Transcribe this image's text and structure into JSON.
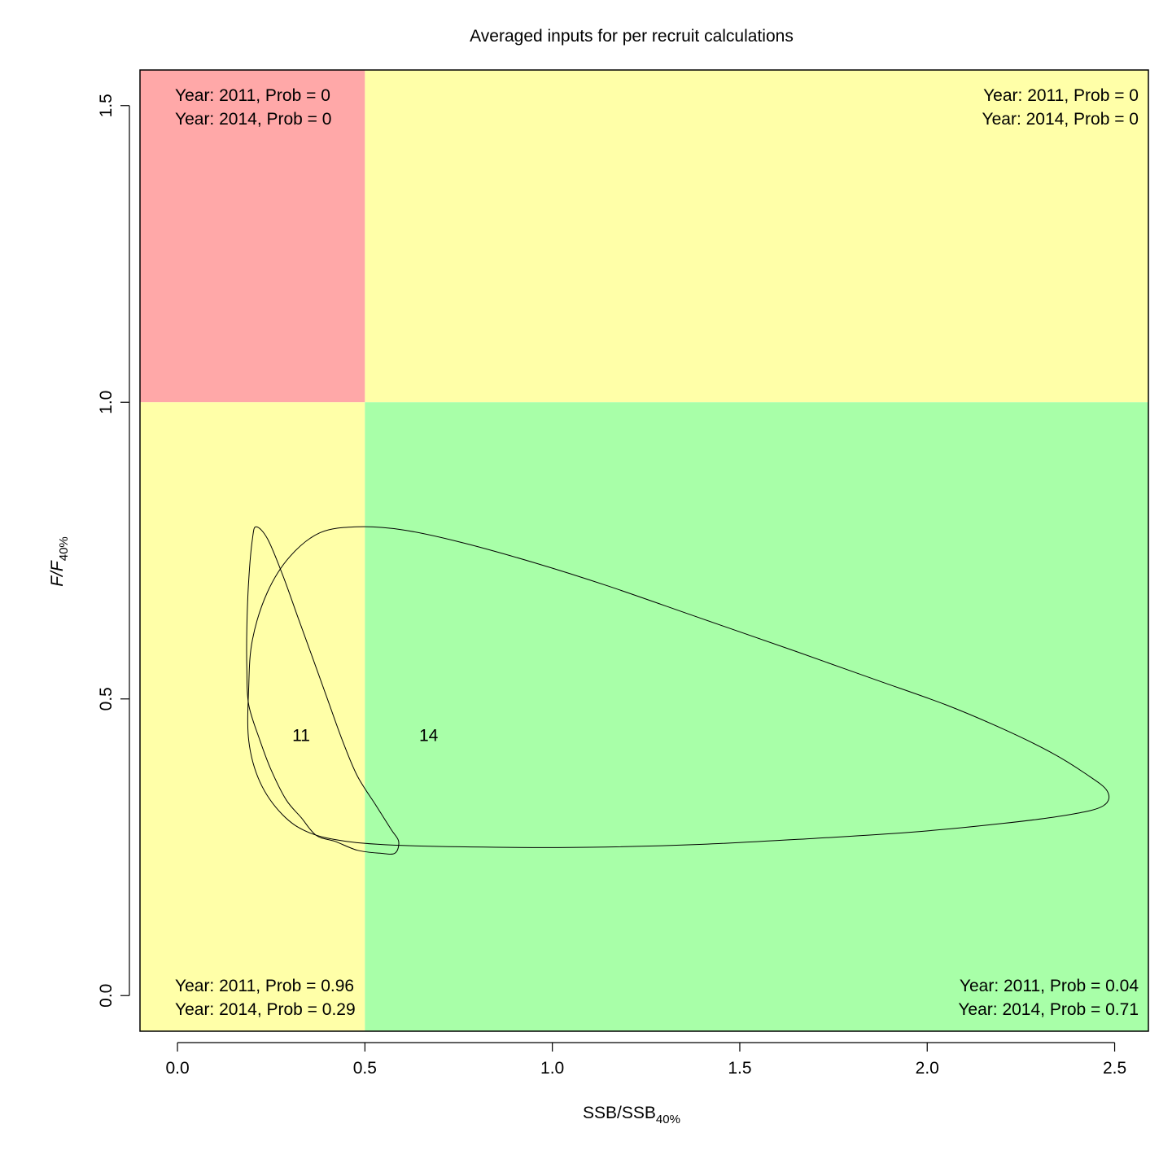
{
  "chart_data": {
    "type": "kobe",
    "title": "Averaged inputs for per recruit calculations",
    "xlabel": {
      "main": "SSB/SSB",
      "sub": "40%"
    },
    "ylabel": {
      "main": "F/F",
      "sub": "40%"
    },
    "xlim": [
      -0.1,
      2.59
    ],
    "ylim": [
      -0.06,
      1.56
    ],
    "x_ticks": [
      0.0,
      0.5,
      1.0,
      1.5,
      2.0,
      2.5
    ],
    "x_tick_labels": [
      "0.0",
      "0.5",
      "1.0",
      "1.5",
      "2.0",
      "2.5"
    ],
    "y_ticks": [
      0.0,
      0.5,
      1.0,
      1.5
    ],
    "y_tick_labels": [
      "0.0",
      "0.5",
      "1.0",
      "1.5"
    ],
    "thresholds": {
      "x": 0.5,
      "y": 1.0
    },
    "grid": false,
    "quadrants": [
      {
        "id": "top-left",
        "color": "#FFA8A8",
        "lines": [
          "Year: 2011, Prob = 0",
          "Year: 2014, Prob = 0"
        ]
      },
      {
        "id": "top-right",
        "color": "#FFFFA8",
        "lines": [
          "Year: 2011, Prob = 0",
          "Year: 2014, Prob = 0"
        ]
      },
      {
        "id": "bottom-left",
        "color": "#FFFFA8",
        "lines": [
          "Year: 2011, Prob = 0.96",
          "Year: 2014, Prob = 0.29"
        ]
      },
      {
        "id": "bottom-right",
        "color": "#A8FFA8",
        "lines": [
          "Year: 2011, Prob = 0.04",
          "Year: 2014, Prob = 0.71"
        ]
      }
    ],
    "series": [
      {
        "name": "11",
        "label_pos": [
          0.33,
          0.44
        ],
        "points": [
          [
            0.21,
            0.79
          ],
          [
            0.24,
            0.77
          ],
          [
            0.28,
            0.71
          ],
          [
            0.32,
            0.64
          ],
          [
            0.36,
            0.57
          ],
          [
            0.4,
            0.5
          ],
          [
            0.44,
            0.43
          ],
          [
            0.48,
            0.37
          ],
          [
            0.53,
            0.32
          ],
          [
            0.57,
            0.28
          ],
          [
            0.59,
            0.26
          ],
          [
            0.58,
            0.24
          ],
          [
            0.54,
            0.24
          ],
          [
            0.48,
            0.245
          ],
          [
            0.42,
            0.26
          ],
          [
            0.37,
            0.27
          ],
          [
            0.33,
            0.3
          ],
          [
            0.29,
            0.33
          ],
          [
            0.25,
            0.38
          ],
          [
            0.22,
            0.43
          ],
          [
            0.19,
            0.49
          ],
          [
            0.185,
            0.55
          ],
          [
            0.185,
            0.62
          ],
          [
            0.19,
            0.7
          ],
          [
            0.2,
            0.77
          ],
          [
            0.21,
            0.79
          ]
        ]
      },
      {
        "name": "14",
        "label_pos": [
          0.67,
          0.44
        ],
        "points": [
          [
            0.48,
            0.79
          ],
          [
            0.6,
            0.785
          ],
          [
            0.75,
            0.765
          ],
          [
            0.95,
            0.73
          ],
          [
            1.15,
            0.69
          ],
          [
            1.4,
            0.635
          ],
          [
            1.65,
            0.58
          ],
          [
            1.85,
            0.535
          ],
          [
            2.05,
            0.49
          ],
          [
            2.2,
            0.45
          ],
          [
            2.33,
            0.41
          ],
          [
            2.42,
            0.375
          ],
          [
            2.48,
            0.345
          ],
          [
            2.47,
            0.32
          ],
          [
            2.38,
            0.305
          ],
          [
            2.2,
            0.29
          ],
          [
            1.95,
            0.275
          ],
          [
            1.7,
            0.265
          ],
          [
            1.4,
            0.255
          ],
          [
            1.1,
            0.25
          ],
          [
            0.85,
            0.25
          ],
          [
            0.6,
            0.253
          ],
          [
            0.45,
            0.26
          ],
          [
            0.35,
            0.275
          ],
          [
            0.28,
            0.305
          ],
          [
            0.22,
            0.36
          ],
          [
            0.19,
            0.43
          ],
          [
            0.19,
            0.52
          ],
          [
            0.2,
            0.6
          ],
          [
            0.24,
            0.68
          ],
          [
            0.3,
            0.74
          ],
          [
            0.38,
            0.78
          ],
          [
            0.48,
            0.79
          ]
        ]
      }
    ]
  }
}
